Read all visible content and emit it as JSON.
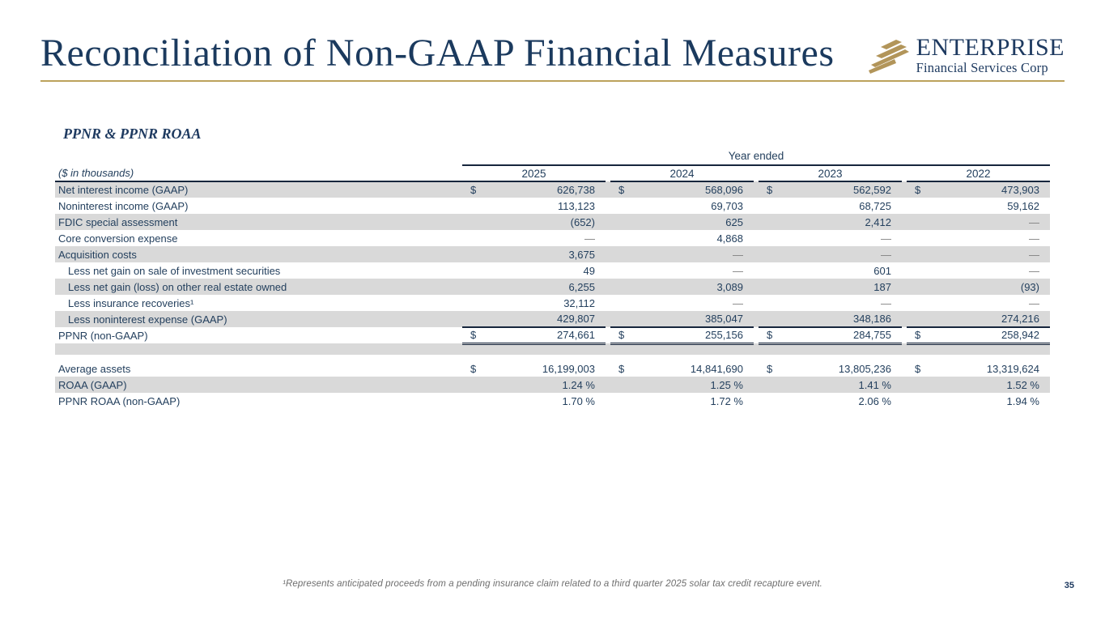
{
  "slide": {
    "title": "Reconciliation of Non-GAAP Financial Measures",
    "page_number": "35",
    "footnote": "¹Represents anticipated proceeds from a pending insurance claim related to a third quarter 2025 solar tax credit recapture event."
  },
  "logo": {
    "name": "ENTERPRISE",
    "subtitle": "Financial Services Corp"
  },
  "colors": {
    "navy_text": "#1e3a60",
    "gold_accent": "#bca25c",
    "row_shade": "#d9d9d9",
    "rule": "#17263d",
    "footnote_gray": "#6e6e6e"
  },
  "table": {
    "section_title": "PPNR & PPNR ROAA",
    "units_label": "($ in thousands)",
    "group_header": "Year ended",
    "years": [
      "2025",
      "2024",
      "2023",
      "2022"
    ],
    "currency_symbol": "$",
    "empty_symbol": "—",
    "rows": [
      {
        "type": "data",
        "label": "Net interest income (GAAP)",
        "indent": false,
        "dollar": true,
        "shaded": true,
        "values": [
          "626,738",
          "568,096",
          "562,592",
          "473,903"
        ]
      },
      {
        "type": "data",
        "label": "Noninterest income (GAAP)",
        "indent": false,
        "dollar": false,
        "shaded": false,
        "values": [
          "113,123",
          "69,703",
          "68,725",
          "59,162"
        ]
      },
      {
        "type": "data",
        "label": "FDIC special assessment",
        "indent": false,
        "dollar": false,
        "shaded": true,
        "values": [
          "(652)",
          "625",
          "2,412",
          "—"
        ]
      },
      {
        "type": "data",
        "label": "Core conversion expense",
        "indent": false,
        "dollar": false,
        "shaded": false,
        "values": [
          "—",
          "4,868",
          "—",
          "—"
        ]
      },
      {
        "type": "data",
        "label": "Acquisition costs",
        "indent": false,
        "dollar": false,
        "shaded": true,
        "values": [
          "3,675",
          "—",
          "—",
          "—"
        ]
      },
      {
        "type": "data",
        "label": "Less net gain on sale of investment securities",
        "indent": true,
        "dollar": false,
        "shaded": false,
        "values": [
          "49",
          "—",
          "601",
          "—"
        ]
      },
      {
        "type": "data",
        "label": "Less net gain (loss) on other real estate owned",
        "indent": true,
        "dollar": false,
        "shaded": true,
        "values": [
          "6,255",
          "3,089",
          "187",
          "(93)"
        ]
      },
      {
        "type": "data",
        "label": "Less insurance recoveries¹",
        "indent": true,
        "dollar": false,
        "shaded": false,
        "values": [
          "32,112",
          "—",
          "—",
          "—"
        ]
      },
      {
        "type": "data",
        "label": "Less noninterest expense (GAAP)",
        "indent": true,
        "dollar": false,
        "shaded": true,
        "rule_below": true,
        "values": [
          "429,807",
          "385,047",
          "348,186",
          "274,216"
        ]
      },
      {
        "type": "data",
        "label": "PPNR (non-GAAP)",
        "indent": false,
        "dollar": true,
        "shaded": false,
        "double_rule_below": true,
        "values": [
          "274,661",
          "255,156",
          "284,755",
          "258,942"
        ]
      },
      {
        "type": "spacer",
        "shaded": true,
        "height": 14
      },
      {
        "type": "spacer",
        "shaded": false,
        "height": 7
      },
      {
        "type": "data",
        "label": "Average assets",
        "indent": false,
        "dollar": true,
        "shaded": false,
        "values": [
          "16,199,003",
          "14,841,690",
          "13,805,236",
          "13,319,624"
        ]
      },
      {
        "type": "data",
        "label": "ROAA (GAAP)",
        "indent": false,
        "dollar": false,
        "shaded": true,
        "values": [
          "1.24 %",
          "1.25 %",
          "1.41 %",
          "1.52 %"
        ]
      },
      {
        "type": "data",
        "label": "PPNR ROAA (non-GAAP)",
        "indent": false,
        "dollar": false,
        "shaded": false,
        "values": [
          "1.70 %",
          "1.72 %",
          "2.06 %",
          "1.94 %"
        ]
      }
    ]
  }
}
